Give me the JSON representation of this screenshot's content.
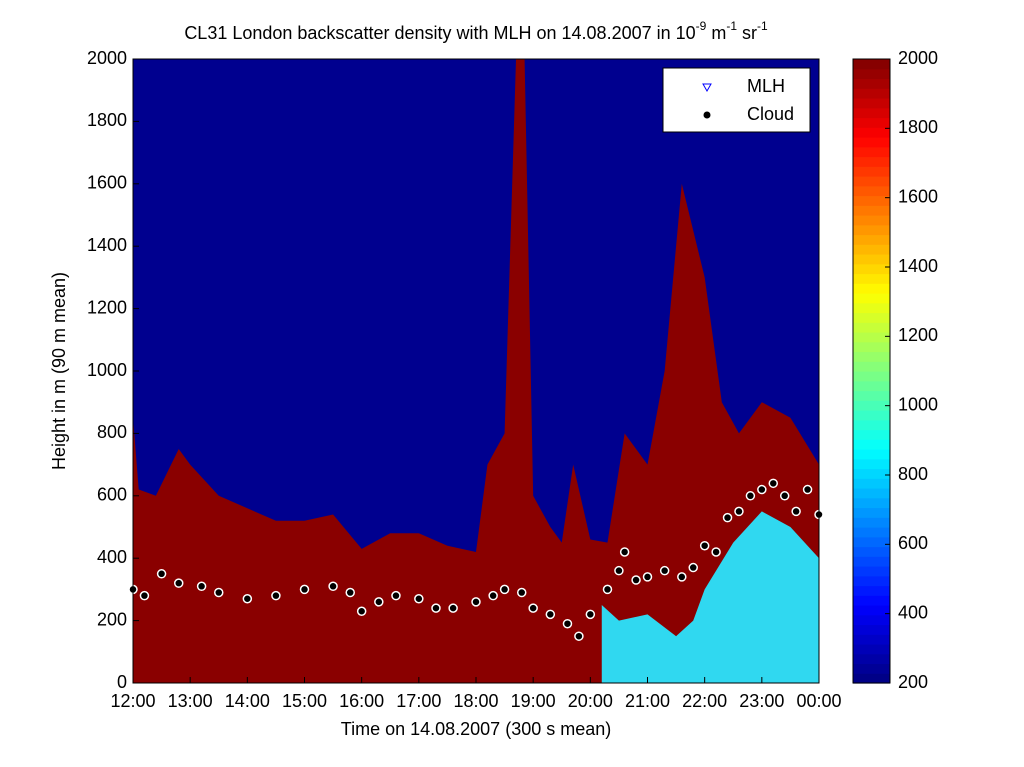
{
  "chart_data": {
    "type": "heatmap",
    "title_parts": [
      {
        "text": "CL31 London backscatter density with MLH on 14.08.2007 in 10",
        "sup": false
      },
      {
        "text": "-9",
        "sup": true
      },
      {
        "text": " m",
        "sup": false
      },
      {
        "text": "-1",
        "sup": true
      },
      {
        "text": " sr",
        "sup": false
      },
      {
        "text": "-1",
        "sup": true
      }
    ],
    "xlabel": "Time on 14.08.2007 (300 s mean)",
    "ylabel": "Height in m (90 m mean)",
    "xlim": [
      12,
      24
    ],
    "xticks": [
      {
        "value": 12,
        "label": "12:00"
      },
      {
        "value": 13,
        "label": "13:00"
      },
      {
        "value": 14,
        "label": "14:00"
      },
      {
        "value": 15,
        "label": "15:00"
      },
      {
        "value": 16,
        "label": "16:00"
      },
      {
        "value": 17,
        "label": "17:00"
      },
      {
        "value": 18,
        "label": "18:00"
      },
      {
        "value": 19,
        "label": "19:00"
      },
      {
        "value": 20,
        "label": "20:00"
      },
      {
        "value": 21,
        "label": "21:00"
      },
      {
        "value": 22,
        "label": "22:00"
      },
      {
        "value": 23,
        "label": "23:00"
      },
      {
        "value": 24,
        "label": "00:00"
      }
    ],
    "ylim": [
      0,
      2000
    ],
    "yticks": [
      0,
      200,
      400,
      600,
      800,
      1000,
      1200,
      1400,
      1600,
      1800,
      2000
    ],
    "clim": [
      200,
      2000
    ],
    "cticks": [
      200,
      400,
      600,
      800,
      1000,
      1200,
      1400,
      1600,
      1800,
      2000
    ],
    "background_color": "#00008f",
    "layer": {
      "color": "#8a0000",
      "x": [
        12,
        12.1,
        12.4,
        12.8,
        13,
        13.5,
        14,
        14.5,
        15,
        15.5,
        16,
        16.5,
        17,
        17.5,
        18,
        18.2,
        18.5,
        18.7,
        18.85,
        19,
        19.3,
        19.5,
        19.7,
        20,
        20.3,
        20.6,
        21,
        21.3,
        21.6,
        22,
        22.3,
        22.6,
        23,
        23.5,
        24
      ],
      "top": [
        850,
        620,
        600,
        750,
        700,
        600,
        560,
        520,
        520,
        540,
        430,
        480,
        480,
        440,
        420,
        700,
        800,
        2000,
        2000,
        600,
        500,
        450,
        700,
        460,
        450,
        800,
        700,
        1000,
        1600,
        1300,
        900,
        800,
        900,
        850,
        700
      ]
    },
    "low_layer": {
      "color": "#30d8f0",
      "x": [
        20.2,
        20.5,
        21,
        21.5,
        21.8,
        22,
        22.5,
        23,
        23.5,
        24
      ],
      "top": [
        250,
        200,
        220,
        150,
        200,
        300,
        450,
        550,
        500,
        400
      ]
    },
    "legend": "upper right",
    "series": [
      {
        "name": "MLH",
        "color": "#0000ff",
        "x": [],
        "values": []
      },
      {
        "name": "Cloud",
        "color": "#000000",
        "x": [
          12,
          12.2,
          12.5,
          12.8,
          13.2,
          13.5,
          14,
          14.5,
          15,
          15.5,
          15.8,
          16,
          16.3,
          16.6,
          17,
          17.3,
          17.6,
          18,
          18.3,
          18.5,
          18.8,
          19,
          19.3,
          19.6,
          19.8,
          20,
          20.3,
          20.5,
          20.6,
          20.8,
          21,
          21.3,
          21.6,
          21.8,
          22,
          22.2,
          22.4,
          22.6,
          22.8,
          23,
          23.2,
          23.4,
          23.6,
          23.8,
          24
        ],
        "values": [
          300,
          280,
          350,
          320,
          310,
          290,
          270,
          280,
          300,
          310,
          290,
          230,
          260,
          280,
          270,
          240,
          240,
          260,
          280,
          300,
          290,
          240,
          220,
          190,
          150,
          220,
          300,
          360,
          420,
          330,
          340,
          360,
          340,
          370,
          440,
          420,
          530,
          550,
          600,
          620,
          640,
          600,
          550,
          620,
          540
        ]
      }
    ]
  }
}
